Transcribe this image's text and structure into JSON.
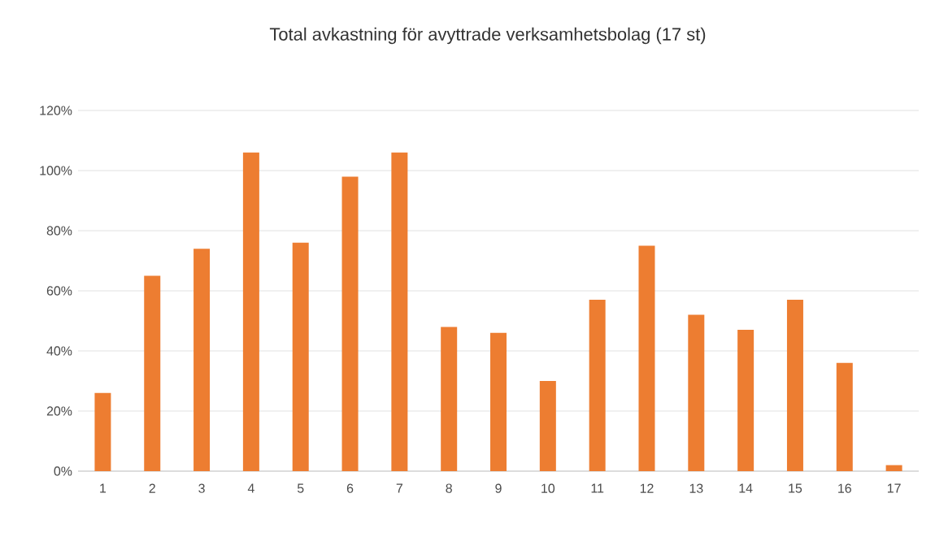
{
  "chart_data": {
    "type": "bar",
    "title": "Total avkastning för avyttrade verksamhetsbolag (17 st)",
    "categories": [
      "1",
      "2",
      "3",
      "4",
      "5",
      "6",
      "7",
      "8",
      "9",
      "10",
      "11",
      "12",
      "13",
      "14",
      "15",
      "16",
      "17"
    ],
    "values": [
      26,
      65,
      74,
      106,
      76,
      98,
      106,
      48,
      46,
      30,
      57,
      75,
      52,
      47,
      57,
      36,
      2
    ],
    "color": "#ed7d31",
    "ylim": [
      0,
      120
    ],
    "yticks": [
      {
        "value": 0,
        "label": "0%"
      },
      {
        "value": 20,
        "label": "20%"
      },
      {
        "value": 40,
        "label": "40%"
      },
      {
        "value": 60,
        "label": "60%"
      },
      {
        "value": 80,
        "label": "80%"
      },
      {
        "value": 100,
        "label": "100%"
      },
      {
        "value": 120,
        "label": "120%"
      }
    ],
    "grid": "y"
  }
}
